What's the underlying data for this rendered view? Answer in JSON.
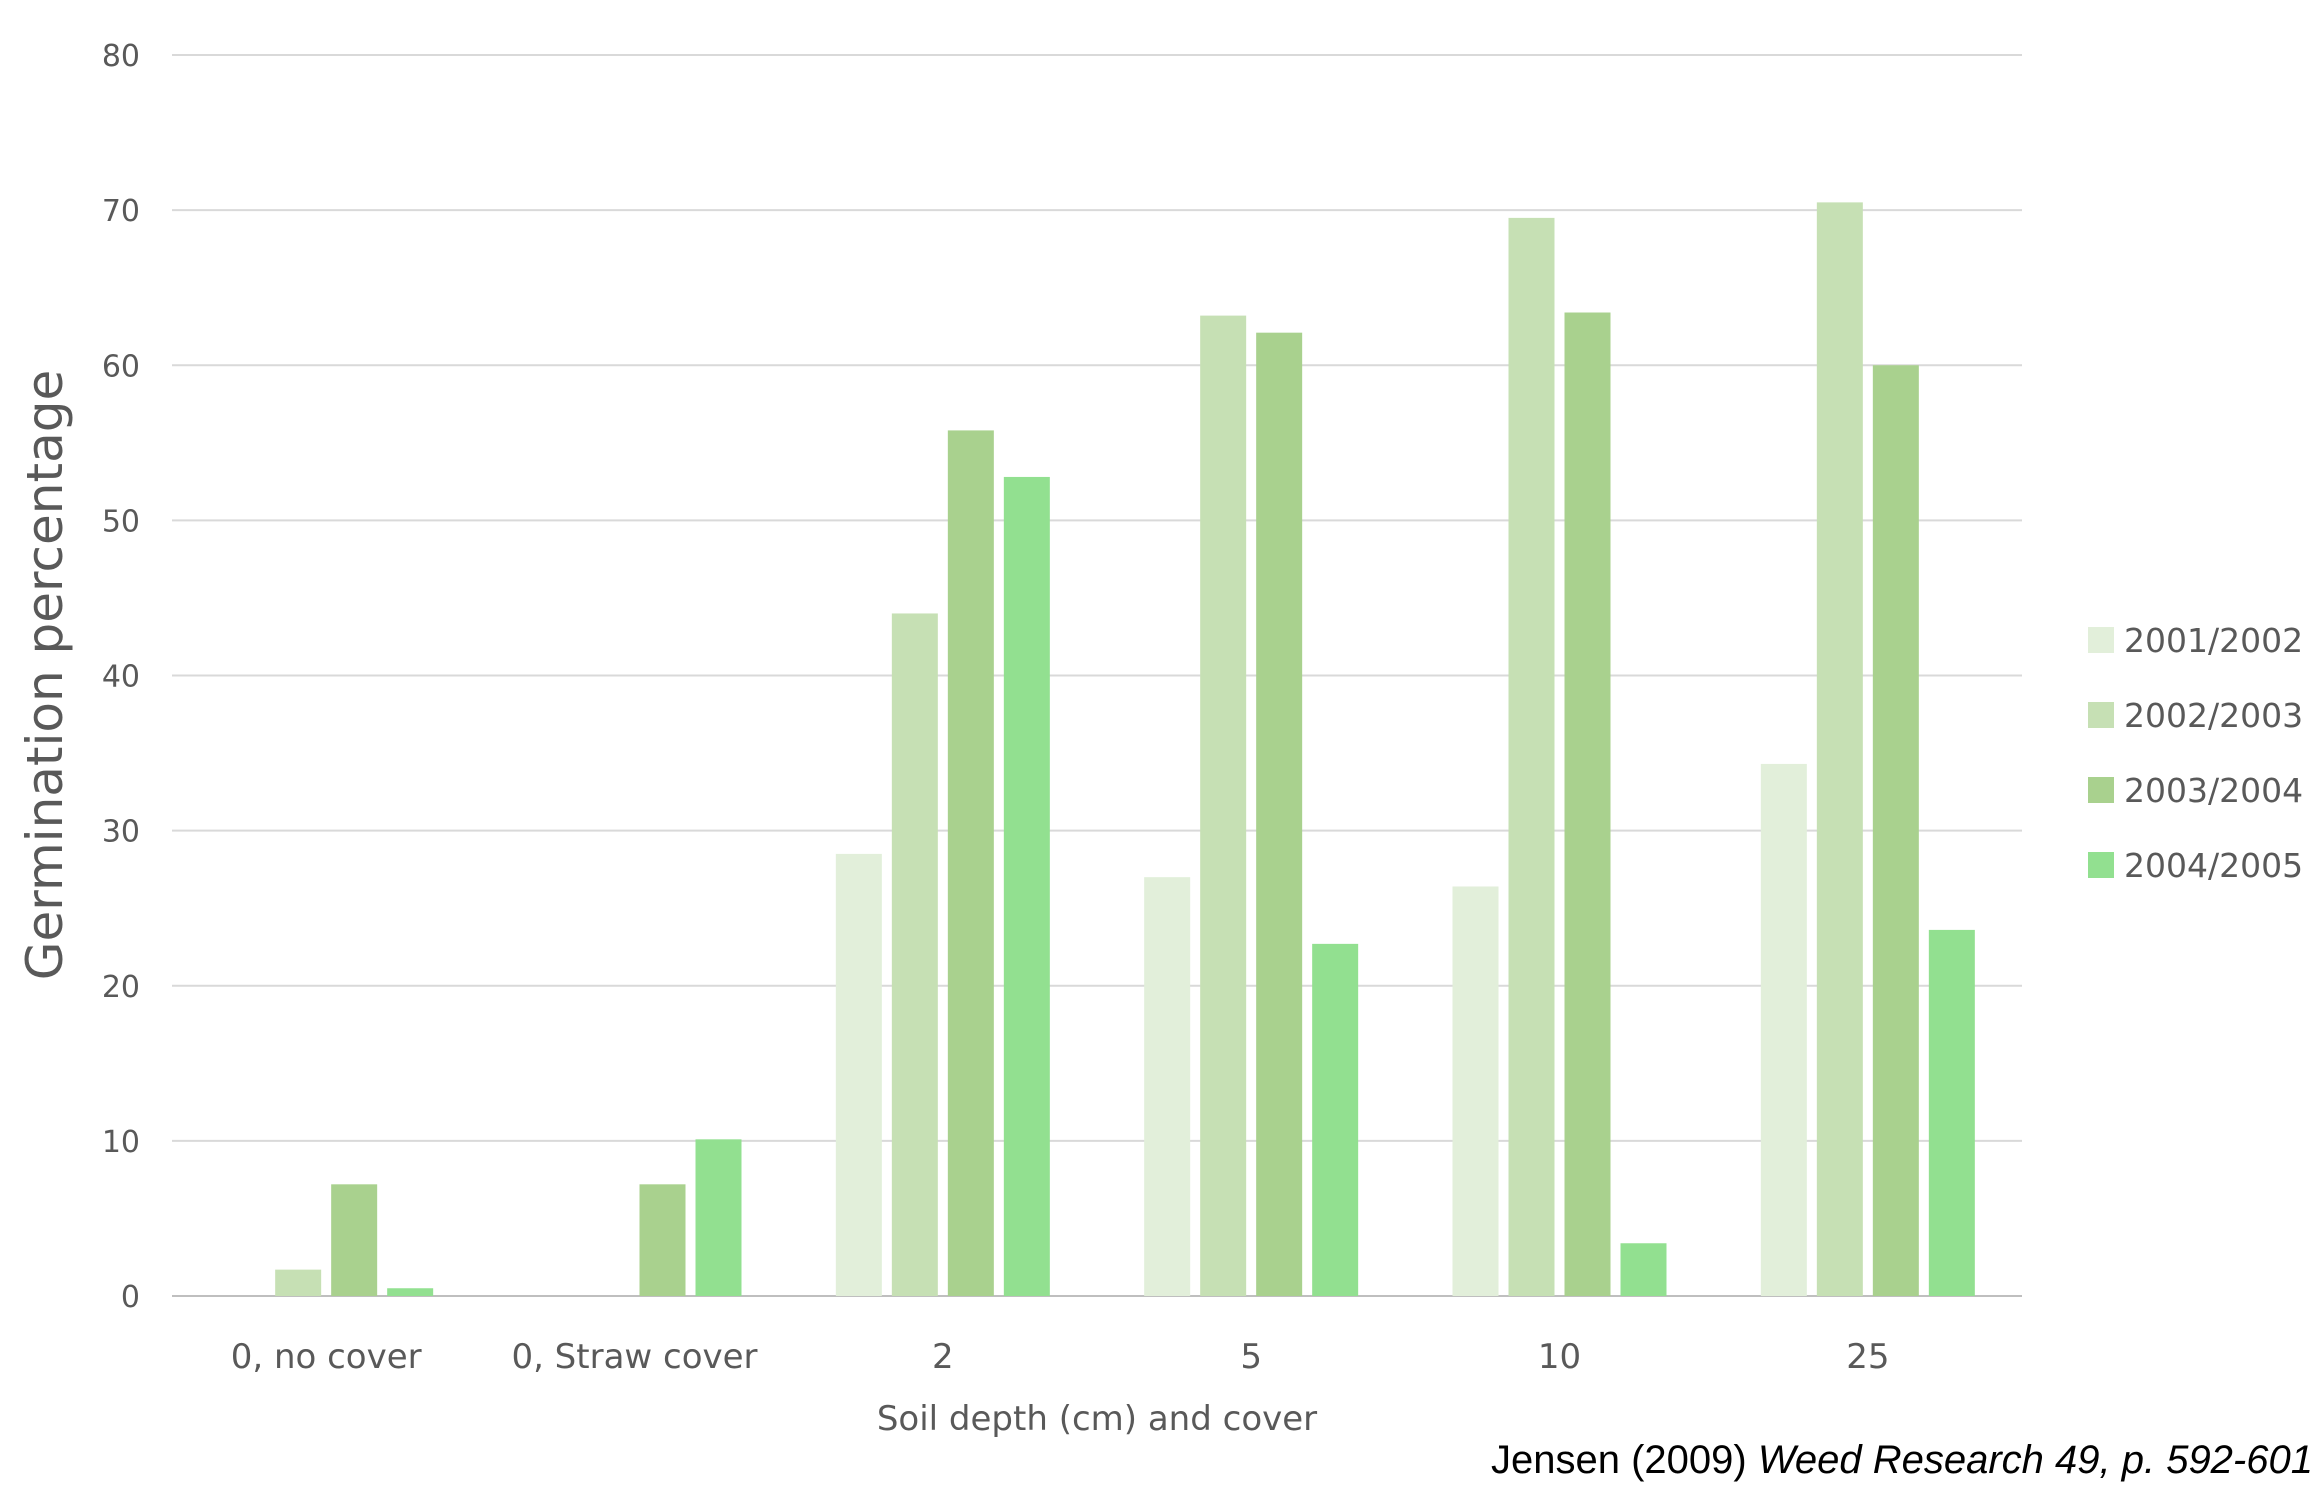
{
  "chart_data": {
    "type": "bar",
    "title": "",
    "xlabel": "Soil depth (cm) and cover",
    "ylabel": "Germination percentage",
    "ylim": [
      0,
      80
    ],
    "yticks": [
      0,
      10,
      20,
      30,
      40,
      50,
      60,
      70,
      80
    ],
    "grid": true,
    "legend_position": "right",
    "categories": [
      "0, no cover",
      "0, Straw cover",
      "2",
      "5",
      "10",
      "25"
    ],
    "series": [
      {
        "name": "2001/2002",
        "color": "#e2efda",
        "values": [
          0,
          0,
          28.5,
          27,
          26.4,
          34.3
        ]
      },
      {
        "name": "2002/2003",
        "color": "#c6e0b4",
        "values": [
          1.7,
          0,
          44,
          63.2,
          69.5,
          70.5
        ]
      },
      {
        "name": "2003/2004",
        "color": "#a9d18e",
        "values": [
          7.2,
          7.2,
          55.8,
          62.1,
          63.4,
          60
        ]
      },
      {
        "name": "2004/2005",
        "color": "#92e090",
        "values": [
          0.5,
          10.1,
          52.8,
          22.7,
          3.4,
          23.6
        ]
      }
    ]
  },
  "citation": {
    "prefix": "Jensen (2009) ",
    "italic": "Weed Research 49, p. 592-601"
  }
}
